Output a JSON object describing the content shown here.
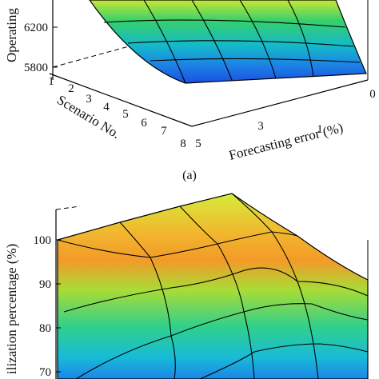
{
  "chart_data": [
    {
      "panel_label": "(a)",
      "type": "surface",
      "zlabel": "Operating",
      "xlabel": "Scenario No.",
      "ylabel": "Forecasting error (%)",
      "z_ticks": [
        "5800",
        "6200"
      ],
      "x_ticks": [
        "1",
        "2",
        "3",
        "4",
        "5",
        "6",
        "7",
        "8"
      ],
      "y_ticks": [
        "0",
        "1",
        "3",
        "5"
      ],
      "grid": true,
      "colormap": "jet"
    },
    {
      "panel_label": "",
      "type": "surface",
      "zlabel": "ilization percentage (%)",
      "z_ticks": [
        "70",
        "80",
        "90",
        "100"
      ],
      "zlim": [
        70,
        100
      ],
      "grid": true,
      "colormap": "jet"
    }
  ]
}
